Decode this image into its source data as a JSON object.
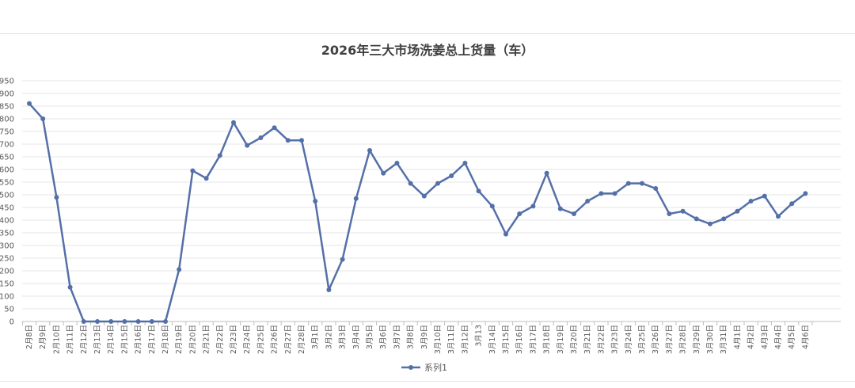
{
  "chart_data": {
    "type": "line",
    "title": "2026年三大市场洗姜总上货量（车）",
    "xlabel": "",
    "ylabel": "",
    "ylim": [
      0,
      950
    ],
    "yticks": [
      0,
      50,
      100,
      150,
      200,
      250,
      300,
      350,
      400,
      450,
      500,
      550,
      600,
      650,
      700,
      750,
      800,
      850,
      900,
      950
    ],
    "grid": true,
    "legend_position": "bottom",
    "categories": [
      "2月8日",
      "2月9日",
      "2月10日",
      "2月11日",
      "2月12日",
      "2月13日",
      "2月14日",
      "2月15日",
      "2月16日",
      "2月17日",
      "2月18日",
      "2月19日",
      "2月20日",
      "2月21日",
      "2月22日",
      "2月23日",
      "2月24日",
      "2月25日",
      "2月26日",
      "2月27日",
      "2月28日",
      "3月1日",
      "3月2日",
      "3月3日",
      "3月4日",
      "3月5日",
      "3月6日",
      "3月7日",
      "3月8日",
      "3月9日",
      "3月10日",
      "3月11日",
      "3月12日",
      "3月13",
      "3月14日",
      "3月15日",
      "3月16日",
      "3月17日",
      "3月18日",
      "3月19日",
      "3月20日",
      "3月21日",
      "3月22日",
      "3月23日",
      "3月24日",
      "3月25日",
      "3月26日",
      "3月27日",
      "3月28日",
      "3月29日",
      "3月30日",
      "3月31日",
      "4月1日",
      "4月2日",
      "4月3日",
      "4月4日",
      "4月5日",
      "4月6日"
    ],
    "series": [
      {
        "name": "系列1",
        "color": "#5470a8",
        "values": [
          860,
          800,
          490,
          135,
          0,
          0,
          0,
          0,
          0,
          0,
          0,
          205,
          595,
          565,
          655,
          785,
          695,
          725,
          765,
          715,
          715,
          475,
          125,
          245,
          485,
          675,
          585,
          625,
          545,
          495,
          545,
          575,
          625,
          515,
          455,
          345,
          425,
          455,
          585,
          445,
          425,
          475,
          505,
          505,
          545,
          545,
          525,
          425,
          435,
          405,
          385,
          405,
          435,
          475,
          495,
          415,
          465,
          505
        ]
      }
    ]
  }
}
